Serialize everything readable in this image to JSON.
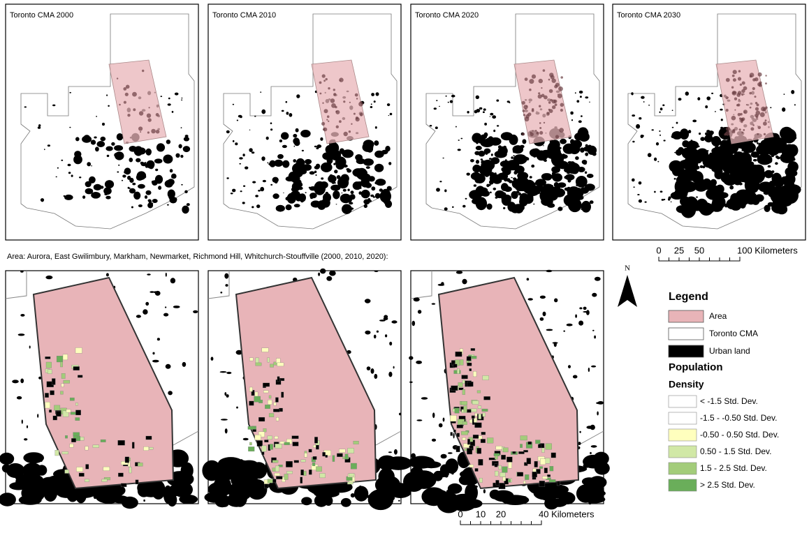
{
  "top_maps": [
    {
      "title": "Toronto CMA 2000"
    },
    {
      "title": "Toronto CMA 2010"
    },
    {
      "title": "Toronto CMA 2020"
    },
    {
      "title": "Toronto CMA 2030"
    }
  ],
  "caption": "Area: Aurora, East Gwilimbury, Markham, Newmarket, Richmond Hill, Whitchurch-Stouffville (2000, 2010, 2020):",
  "scale_top": {
    "labels": [
      "0",
      "25",
      "50",
      "100 Kilometers"
    ]
  },
  "scale_bottom": {
    "labels": [
      "0",
      "10",
      "20",
      "40 Kilometers"
    ]
  },
  "north": "N",
  "legend": {
    "title": "Legend",
    "items": [
      {
        "label": "Area",
        "color": "#e8b4b8"
      },
      {
        "label": "Toronto CMA",
        "color": "#ffffff"
      },
      {
        "label": "Urban land",
        "color": "#000000"
      }
    ],
    "population_title": "Population",
    "density_title": "Density",
    "density_classes": [
      {
        "label": "< -1.5 Std. Dev.",
        "color": "#ffffff"
      },
      {
        "label": "-1.5 - -0.50 Std. Dev.",
        "color": "#ffffff"
      },
      {
        "label": "-0.50 - 0.50 Std. Dev.",
        "color": "#ffffbe"
      },
      {
        "label": "0.50 - 1.5 Std. Dev.",
        "color": "#d1e8a6"
      },
      {
        "label": "1.5 - 2.5 Std. Dev.",
        "color": "#a3cc7a"
      },
      {
        "label": "> 2.5 Std. Dev.",
        "color": "#6aae5a"
      }
    ]
  }
}
